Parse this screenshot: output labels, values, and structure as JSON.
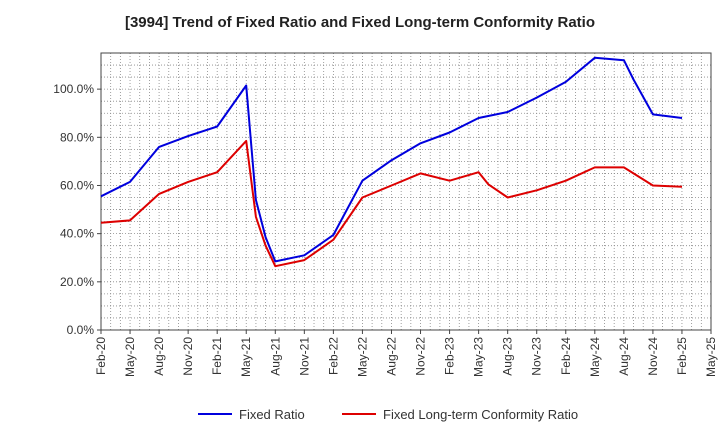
{
  "chart_data": {
    "type": "line",
    "title": "[3994]  Trend of Fixed Ratio and Fixed Long-term Conformity Ratio",
    "xlabel": "",
    "ylabel": "",
    "x_ticks": [
      "Feb-20",
      "May-20",
      "Aug-20",
      "Nov-20",
      "Feb-21",
      "May-21",
      "Aug-21",
      "Nov-21",
      "Feb-22",
      "May-22",
      "Aug-22",
      "Nov-22",
      "Feb-23",
      "May-23",
      "Aug-23",
      "Nov-23",
      "Feb-24",
      "May-24",
      "Aug-24",
      "Nov-24",
      "Feb-25",
      "May-25"
    ],
    "y_ticks": [
      "0.0%",
      "20.0%",
      "40.0%",
      "60.0%",
      "80.0%",
      "100.0%"
    ],
    "ylim": [
      0,
      115
    ],
    "grid": true,
    "legend_position": "bottom-center",
    "series": [
      {
        "name": "Fixed Ratio",
        "color": "#0000dd",
        "points": [
          [
            "Feb-20",
            55.5
          ],
          [
            "May-20",
            61.5
          ],
          [
            "Aug-20",
            76.0
          ],
          [
            "Nov-20",
            80.5
          ],
          [
            "Feb-21",
            84.5
          ],
          [
            "May-21",
            101.5
          ],
          [
            "Jun-21",
            54.0
          ],
          [
            "Jul-21",
            38.5
          ],
          [
            "Aug-21",
            28.5
          ],
          [
            "Nov-21",
            31.0
          ],
          [
            "Feb-22",
            39.5
          ],
          [
            "May-22",
            62.0
          ],
          [
            "Aug-22",
            70.5
          ],
          [
            "Nov-22",
            77.5
          ],
          [
            "Feb-23",
            82.0
          ],
          [
            "May-23",
            88.0
          ],
          [
            "Aug-23",
            90.5
          ],
          [
            "Nov-23",
            96.5
          ],
          [
            "Feb-24",
            103.0
          ],
          [
            "May-24",
            113.0
          ],
          [
            "Aug-24",
            112.0
          ],
          [
            "Sep-24",
            104.0
          ],
          [
            "Nov-24",
            89.5
          ],
          [
            "Feb-25",
            88.0
          ]
        ]
      },
      {
        "name": "Fixed Long-term Conformity Ratio",
        "color": "#dd0000",
        "points": [
          [
            "Feb-20",
            44.5
          ],
          [
            "May-20",
            45.5
          ],
          [
            "Aug-20",
            56.5
          ],
          [
            "Nov-20",
            61.5
          ],
          [
            "Feb-21",
            65.5
          ],
          [
            "May-21",
            78.5
          ],
          [
            "Jun-21",
            47.0
          ],
          [
            "Jul-21",
            35.0
          ],
          [
            "Aug-21",
            26.5
          ],
          [
            "Nov-21",
            29.0
          ],
          [
            "Feb-22",
            37.5
          ],
          [
            "May-22",
            55.0
          ],
          [
            "Aug-22",
            60.0
          ],
          [
            "Nov-22",
            65.0
          ],
          [
            "Feb-23",
            62.0
          ],
          [
            "May-23",
            65.5
          ],
          [
            "Jun-23",
            60.5
          ],
          [
            "Aug-23",
            55.0
          ],
          [
            "Nov-23",
            58.0
          ],
          [
            "Feb-24",
            62.0
          ],
          [
            "May-24",
            67.5
          ],
          [
            "Aug-24",
            67.5
          ],
          [
            "Nov-24",
            60.0
          ],
          [
            "Feb-25",
            59.5
          ]
        ]
      }
    ]
  }
}
